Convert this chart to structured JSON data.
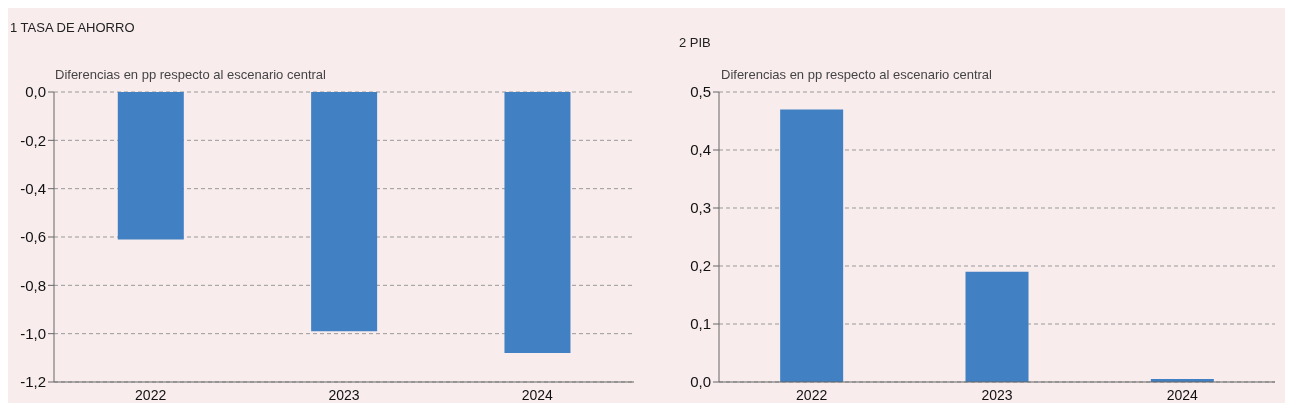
{
  "chart_data": [
    {
      "type": "bar",
      "title": "1  TASA DE AHORRO",
      "ylabel": "Diferencias en pp respecto al escenario central",
      "categories": [
        "2022",
        "2023",
        "2024"
      ],
      "values": [
        -0.61,
        -0.99,
        -1.08
      ],
      "color": "#4180c2",
      "ylim": [
        -1.2,
        0
      ],
      "yticks": [
        {
          "value": 0,
          "label": "0,0"
        },
        {
          "value": -0.2,
          "label": "-0,2"
        },
        {
          "value": -0.4,
          "label": "-0,4"
        },
        {
          "value": -0.6,
          "label": "-0,6"
        },
        {
          "value": -0.8,
          "label": "-0,8"
        },
        {
          "value": -1.0,
          "label": "-1,0"
        },
        {
          "value": -1.2,
          "label": "-1,2"
        }
      ],
      "grid": "y"
    },
    {
      "type": "bar",
      "title": "2  PIB",
      "ylabel": "Diferencias en pp respecto al escenario central",
      "categories": [
        "2022",
        "2023",
        "2024"
      ],
      "values": [
        0.47,
        0.19,
        0.005
      ],
      "color": "#4180c2",
      "ylim": [
        0,
        0.5
      ],
      "yticks": [
        {
          "value": 0,
          "label": "0,0"
        },
        {
          "value": 0.1,
          "label": "0,1"
        },
        {
          "value": 0.2,
          "label": "0,2"
        },
        {
          "value": 0.3,
          "label": "0,3"
        },
        {
          "value": 0.4,
          "label": "0,4"
        },
        {
          "value": 0.5,
          "label": "0,5"
        }
      ],
      "grid": "y"
    }
  ]
}
